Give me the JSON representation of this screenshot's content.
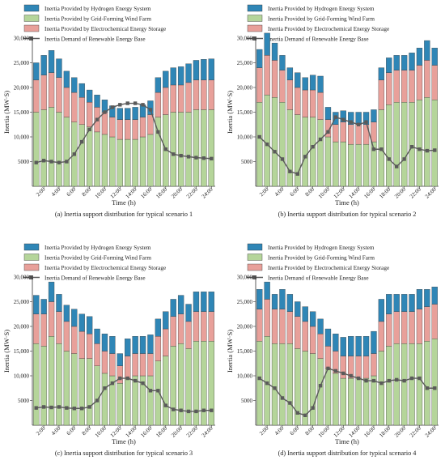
{
  "legend": [
    {
      "key": "hydrogen",
      "label": "Inertia Provided by Hydrogen Energy System",
      "color": "#2f86b6"
    },
    {
      "key": "wind",
      "label": "Inertia Provided by Grid-Forming Wind Farm",
      "color": "#b5d59a"
    },
    {
      "key": "storage",
      "label": "Inertia Provided by Electrochemical Energy Storage",
      "color": "#e8a09a"
    },
    {
      "key": "demand",
      "label": "Inertia Demand of Renewable Energy Base",
      "color": "#5a5a5a"
    }
  ],
  "axis": {
    "xlabel": "Time  (h)",
    "ylabel": "Inertia (MW·S)",
    "yticks": [
      "5000",
      "10,000",
      "15,000",
      "20,000",
      "25,000",
      "30,000"
    ],
    "xticks": [
      "2:00",
      "4:00",
      "6:00",
      "8:00",
      "10:00",
      "12:00",
      "14:00",
      "16:00",
      "18:00",
      "20:00",
      "22:00",
      "24:00"
    ]
  },
  "chart_data": [
    {
      "type": "bar",
      "caption": "(a) Inertia support distribution for typical scenario 1",
      "ylim": [
        0,
        30000
      ],
      "categories": [
        "1:00",
        "2:00",
        "3:00",
        "4:00",
        "5:00",
        "6:00",
        "7:00",
        "8:00",
        "9:00",
        "10:00",
        "11:00",
        "12:00",
        "13:00",
        "14:00",
        "15:00",
        "16:00",
        "17:00",
        "18:00",
        "19:00",
        "20:00",
        "21:00",
        "22:00",
        "23:00",
        "24:00"
      ],
      "series": [
        {
          "name": "Inertia Provided by Grid-Forming Wind Farm",
          "values": [
            15000,
            15500,
            16000,
            15000,
            14000,
            13000,
            12500,
            12000,
            11000,
            10500,
            10000,
            9500,
            9500,
            9500,
            10000,
            10500,
            14000,
            14500,
            15000,
            15000,
            15000,
            15500,
            15500,
            15500
          ]
        },
        {
          "name": "Inertia Provided by Electrochemical Energy Storage",
          "values": [
            6500,
            7000,
            7000,
            7000,
            6000,
            6000,
            5500,
            5000,
            5000,
            4500,
            4000,
            4000,
            4000,
            4000,
            4000,
            4000,
            5000,
            5500,
            5500,
            5500,
            6000,
            6000,
            6000,
            6000
          ]
        },
        {
          "name": "Inertia Provided by Hydrogen Energy System",
          "values": [
            3500,
            4000,
            4500,
            3800,
            3300,
            3000,
            2800,
            2500,
            2500,
            2500,
            2300,
            2300,
            2300,
            2500,
            2500,
            2800,
            3000,
            3300,
            3500,
            3700,
            3800,
            4000,
            4200,
            4300
          ]
        }
      ],
      "demand": [
        4800,
        5200,
        5000,
        4800,
        5000,
        6500,
        9000,
        11500,
        13500,
        15000,
        16000,
        16500,
        16800,
        16800,
        16500,
        15500,
        11000,
        7500,
        6500,
        6200,
        6000,
        5800,
        5700,
        5600
      ]
    },
    {
      "type": "bar",
      "caption": "(b) Inertia support distribution for typical scenario 2",
      "ylim": [
        0,
        30000
      ],
      "categories": [
        "1:00",
        "2:00",
        "3:00",
        "4:00",
        "5:00",
        "6:00",
        "7:00",
        "8:00",
        "9:00",
        "10:00",
        "11:00",
        "12:00",
        "13:00",
        "14:00",
        "15:00",
        "16:00",
        "17:00",
        "18:00",
        "19:00",
        "20:00",
        "21:00",
        "22:00",
        "23:00",
        "24:00"
      ],
      "series": [
        {
          "name": "Inertia Provided by Grid-Forming Wind Farm",
          "values": [
            17000,
            18500,
            18000,
            17000,
            15500,
            14500,
            14000,
            14000,
            13500,
            10000,
            9000,
            9000,
            8500,
            8500,
            8500,
            9000,
            15500,
            16500,
            17000,
            17000,
            17000,
            17500,
            18000,
            17500
          ]
        },
        {
          "name": "Inertia Provided by Electrochemical Energy Storage",
          "values": [
            7000,
            8000,
            7500,
            6500,
            6000,
            5500,
            5500,
            5500,
            5500,
            3500,
            3500,
            4000,
            4000,
            4000,
            4000,
            4000,
            6000,
            6500,
            6500,
            6500,
            6500,
            7000,
            7500,
            7000
          ]
        },
        {
          "name": "Inertia Provided by Hydrogen Energy System",
          "values": [
            3700,
            4500,
            3500,
            3000,
            2500,
            3000,
            2500,
            3000,
            3300,
            2500,
            2500,
            2300,
            2500,
            2500,
            2500,
            2500,
            2500,
            3000,
            3000,
            3000,
            3500,
            3500,
            4000,
            3500
          ]
        }
      ],
      "demand": [
        10000,
        8500,
        7000,
        5500,
        3000,
        2500,
        6000,
        8000,
        9500,
        11000,
        14000,
        13500,
        13000,
        12500,
        13000,
        7500,
        7500,
        5500,
        4000,
        5500,
        8000,
        7500,
        7200,
        7300
      ]
    },
    {
      "type": "bar",
      "caption": "(c) Inertia support distribution for typical scenario 3",
      "ylim": [
        0,
        30000
      ],
      "categories": [
        "1:00",
        "2:00",
        "3:00",
        "4:00",
        "5:00",
        "6:00",
        "7:00",
        "8:00",
        "9:00",
        "10:00",
        "11:00",
        "12:00",
        "13:00",
        "14:00",
        "15:00",
        "16:00",
        "17:00",
        "18:00",
        "19:00",
        "20:00",
        "21:00",
        "22:00",
        "23:00",
        "24:00"
      ],
      "series": [
        {
          "name": "Inertia Provided by Grid-Forming Wind Farm",
          "values": [
            16500,
            16000,
            18000,
            16500,
            15000,
            14500,
            13500,
            13500,
            12000,
            10500,
            10000,
            8500,
            9500,
            10000,
            10000,
            10000,
            13000,
            14000,
            16000,
            16500,
            15500,
            17000,
            17000,
            17000
          ]
        },
        {
          "name": "Inertia Provided by Electrochemical Energy Storage",
          "values": [
            6000,
            6500,
            7000,
            6500,
            6000,
            5500,
            5500,
            5000,
            4500,
            4500,
            4500,
            3500,
            4500,
            4500,
            4500,
            4500,
            5000,
            5500,
            6000,
            6000,
            5500,
            6000,
            6000,
            6000
          ]
        },
        {
          "name": "Inertia Provided by Hydrogen Energy System",
          "values": [
            3800,
            3000,
            4000,
            3500,
            3300,
            3500,
            3500,
            3500,
            3000,
            3500,
            3500,
            2500,
            3500,
            3500,
            3500,
            3800,
            3500,
            3500,
            3500,
            3800,
            3500,
            4000,
            4000,
            4000
          ]
        }
      ],
      "demand": [
        3500,
        3700,
        3600,
        3700,
        3500,
        3400,
        3400,
        3700,
        5000,
        7500,
        8500,
        9500,
        9500,
        9000,
        8500,
        7000,
        7000,
        4000,
        3200,
        3000,
        2800,
        2800,
        3000,
        3000
      ]
    },
    {
      "type": "bar",
      "caption": "(d) Inertia support distribution for typical scenario 4",
      "ylim": [
        0,
        30000
      ],
      "categories": [
        "1:00",
        "2:00",
        "3:00",
        "4:00",
        "5:00",
        "6:00",
        "7:00",
        "8:00",
        "9:00",
        "10:00",
        "11:00",
        "12:00",
        "13:00",
        "14:00",
        "15:00",
        "16:00",
        "17:00",
        "18:00",
        "19:00",
        "20:00",
        "21:00",
        "22:00",
        "23:00",
        "24:00"
      ],
      "series": [
        {
          "name": "Inertia Provided by Grid-Forming Wind Farm",
          "values": [
            17000,
            18000,
            16500,
            16500,
            16500,
            15500,
            15000,
            14500,
            13500,
            11500,
            10500,
            9500,
            9500,
            9500,
            9500,
            10000,
            15000,
            16000,
            16500,
            16500,
            16500,
            16500,
            17000,
            17500
          ]
        },
        {
          "name": "Inertia Provided by Electrochemical Energy Storage",
          "values": [
            6500,
            7500,
            7000,
            7000,
            6500,
            6500,
            6000,
            5500,
            5000,
            4500,
            4500,
            4500,
            4500,
            4500,
            4500,
            4500,
            6000,
            6500,
            6500,
            6500,
            6500,
            7000,
            7000,
            7000
          ]
        },
        {
          "name": "Inertia Provided by Hydrogen Energy System",
          "values": [
            4000,
            3500,
            3000,
            4000,
            3500,
            3000,
            3000,
            3000,
            3000,
            3500,
            3500,
            3800,
            4000,
            4000,
            4000,
            4500,
            4500,
            4000,
            3500,
            3500,
            3500,
            4000,
            3500,
            3500
          ]
        }
      ],
      "demand": [
        9500,
        8500,
        7500,
        5500,
        4500,
        2500,
        2000,
        3500,
        8000,
        11500,
        11000,
        10500,
        10000,
        9500,
        9000,
        9000,
        8500,
        9000,
        9200,
        9000,
        9500,
        9500,
        7500,
        7500
      ]
    }
  ]
}
